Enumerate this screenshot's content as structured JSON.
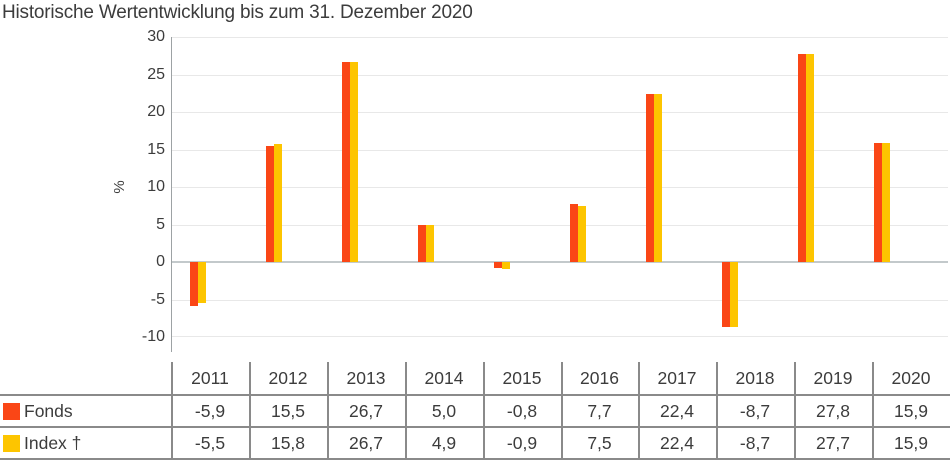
{
  "title": "Historische Wertentwicklung bis zum 31. Dezember 2020",
  "chart_data": {
    "type": "bar",
    "title": "Historische Wertentwicklung bis zum 31. Dezember 2020",
    "xlabel": "",
    "ylabel": "%",
    "ylim": [
      -10,
      30
    ],
    "ytick_step": 5,
    "yticks": [
      30,
      25,
      20,
      15,
      10,
      5,
      0,
      -5,
      -10
    ],
    "grid": true,
    "legend_position": "table rows below chart",
    "categories": [
      "2011",
      "2012",
      "2013",
      "2014",
      "2015",
      "2016",
      "2017",
      "2018",
      "2019",
      "2020"
    ],
    "series": [
      {
        "name": "Fonds",
        "color": "#fa4616",
        "values": [
          -5.9,
          15.5,
          26.7,
          5.0,
          -0.8,
          7.7,
          22.4,
          -8.7,
          27.8,
          15.9
        ]
      },
      {
        "name": "Index †",
        "color": "#fdc500",
        "values": [
          -5.5,
          15.8,
          26.7,
          4.9,
          -0.9,
          7.5,
          22.4,
          -8.7,
          27.7,
          15.9
        ]
      }
    ]
  },
  "table": {
    "header_years": [
      "2011",
      "2012",
      "2013",
      "2014",
      "2015",
      "2016",
      "2017",
      "2018",
      "2019",
      "2020"
    ],
    "rows": [
      {
        "label": "Fonds",
        "swatch_color": "#fa4616",
        "values": [
          "-5,9",
          "15,5",
          "26,7",
          "5,0",
          "-0,8",
          "7,7",
          "22,4",
          "-8,7",
          "27,8",
          "15,9"
        ]
      },
      {
        "label": "Index †",
        "swatch_color": "#fdc500",
        "values": [
          "-5,5",
          "15,8",
          "26,7",
          "4,9",
          "-0,9",
          "7,5",
          "22,4",
          "-8,7",
          "27,7",
          "15,9"
        ]
      }
    ]
  },
  "colors": {
    "fonds_orange": "#fa4616",
    "index_yellow": "#fdc500",
    "gridline": "#e8e8e8",
    "zero_line": "#c3c9cb",
    "axis_line": "#9da2a4",
    "table_border": "#8a8a8a",
    "text": "#3c3c3c"
  }
}
